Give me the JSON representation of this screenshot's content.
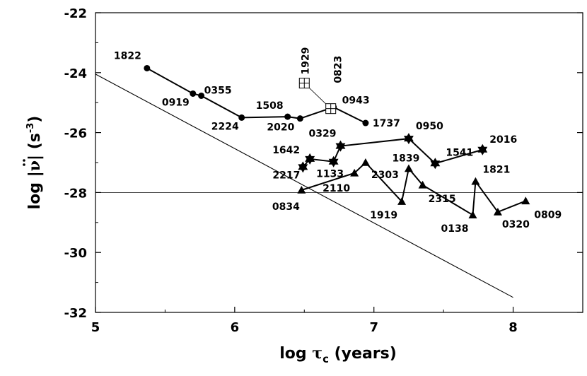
{
  "chart_data": {
    "type": "scatter",
    "xlabel": {
      "main": "log ",
      "tau": "τ",
      "sub": "c",
      "rest": " (years)"
    },
    "ylabel": {
      "main": "log  |",
      "nu": "ν",
      "close": "| (s",
      "sup": "-3",
      "end": ")"
    },
    "xlim": [
      5,
      8.5
    ],
    "ylim": [
      -32,
      -22
    ],
    "xticks": [
      5,
      6,
      7,
      8
    ],
    "yticks": [
      -22,
      -24,
      -26,
      -28,
      -30,
      -32
    ],
    "hline": -28,
    "reference_line": {
      "x": [
        5,
        8
      ],
      "y": [
        -24.05,
        -31.5
      ]
    },
    "series": [
      {
        "marker": "circle",
        "points": [
          {
            "x": 5.37,
            "y": -23.85,
            "label": "1822"
          },
          {
            "x": 5.7,
            "y": -24.7,
            "label": "0919"
          },
          {
            "x": 5.76,
            "y": -24.77,
            "label": "0355"
          },
          {
            "x": 6.05,
            "y": -25.5,
            "label": "2224"
          },
          {
            "x": 6.38,
            "y": -25.47,
            "label": "1508"
          },
          {
            "x": 6.47,
            "y": -25.53,
            "label": "2020"
          },
          {
            "x": 6.71,
            "y": -25.15,
            "label": "0943"
          },
          {
            "x": 6.94,
            "y": -25.68,
            "label": "1737"
          }
        ]
      },
      {
        "marker": "boxed-cross",
        "points": [
          {
            "x": 6.5,
            "y": -24.35,
            "label": "1929"
          },
          {
            "x": 6.69,
            "y": -25.2,
            "label": "0823"
          }
        ]
      },
      {
        "marker": "star",
        "points": [
          {
            "x": 6.49,
            "y": -27.15,
            "label": "2217"
          },
          {
            "x": 6.54,
            "y": -26.88,
            "label": "1642"
          },
          {
            "x": 6.71,
            "y": -26.97,
            "label": "1133"
          },
          {
            "x": 6.76,
            "y": -26.45,
            "label": "0329"
          },
          {
            "x": 7.25,
            "y": -26.2,
            "label": "0950"
          },
          {
            "x": 7.44,
            "y": -27.03,
            "label": "1541"
          },
          {
            "x": 7.78,
            "y": -26.57,
            "label": "2016"
          }
        ]
      },
      {
        "marker": "triangle",
        "points": [
          {
            "x": 6.48,
            "y": -27.92,
            "label": "0834"
          },
          {
            "x": 6.86,
            "y": -27.35,
            "label": "2110"
          },
          {
            "x": 6.94,
            "y": -27.0,
            "label": "2303"
          },
          {
            "x": 7.2,
            "y": -28.3,
            "label": "1919"
          },
          {
            "x": 7.25,
            "y": -27.2,
            "label": "1839"
          },
          {
            "x": 7.35,
            "y": -27.75,
            "label": "2315"
          },
          {
            "x": 7.71,
            "y": -28.75,
            "label": "0138"
          },
          {
            "x": 7.73,
            "y": -27.63,
            "label": "1821"
          },
          {
            "x": 7.89,
            "y": -28.65,
            "label": "0320"
          },
          {
            "x": 8.09,
            "y": -28.28,
            "label": "0809"
          }
        ]
      }
    ]
  }
}
